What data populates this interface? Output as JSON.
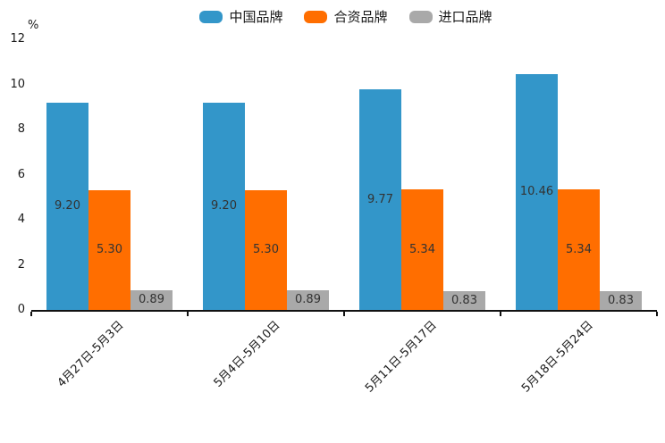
{
  "chart_data": {
    "type": "bar",
    "title": "",
    "ylabel": "%",
    "categories": [
      "4月27日-5月3日",
      "5月4日-5月10日",
      "5月11日-5月17日",
      "5月18日-5月24日"
    ],
    "series": [
      {
        "name": "中国品牌",
        "color": "#3396c9",
        "values": [
          9.2,
          9.2,
          9.77,
          10.46
        ]
      },
      {
        "name": "合资品牌",
        "color": "#ff6e00",
        "values": [
          5.3,
          5.3,
          5.34,
          5.34
        ]
      },
      {
        "name": "进口品牌",
        "color": "#a9a9a9",
        "values": [
          0.89,
          0.89,
          0.83,
          0.83
        ]
      }
    ],
    "yticks": [
      0,
      2,
      4,
      6,
      8,
      10,
      12
    ],
    "ylim": [
      0,
      12
    ],
    "grid": false,
    "legend_position": "top",
    "value_labels": true,
    "value_label_decimals": 2,
    "bar_label_color": "#333333",
    "axis_color": "#111111",
    "tick_label_color": "#1a1a1a"
  }
}
